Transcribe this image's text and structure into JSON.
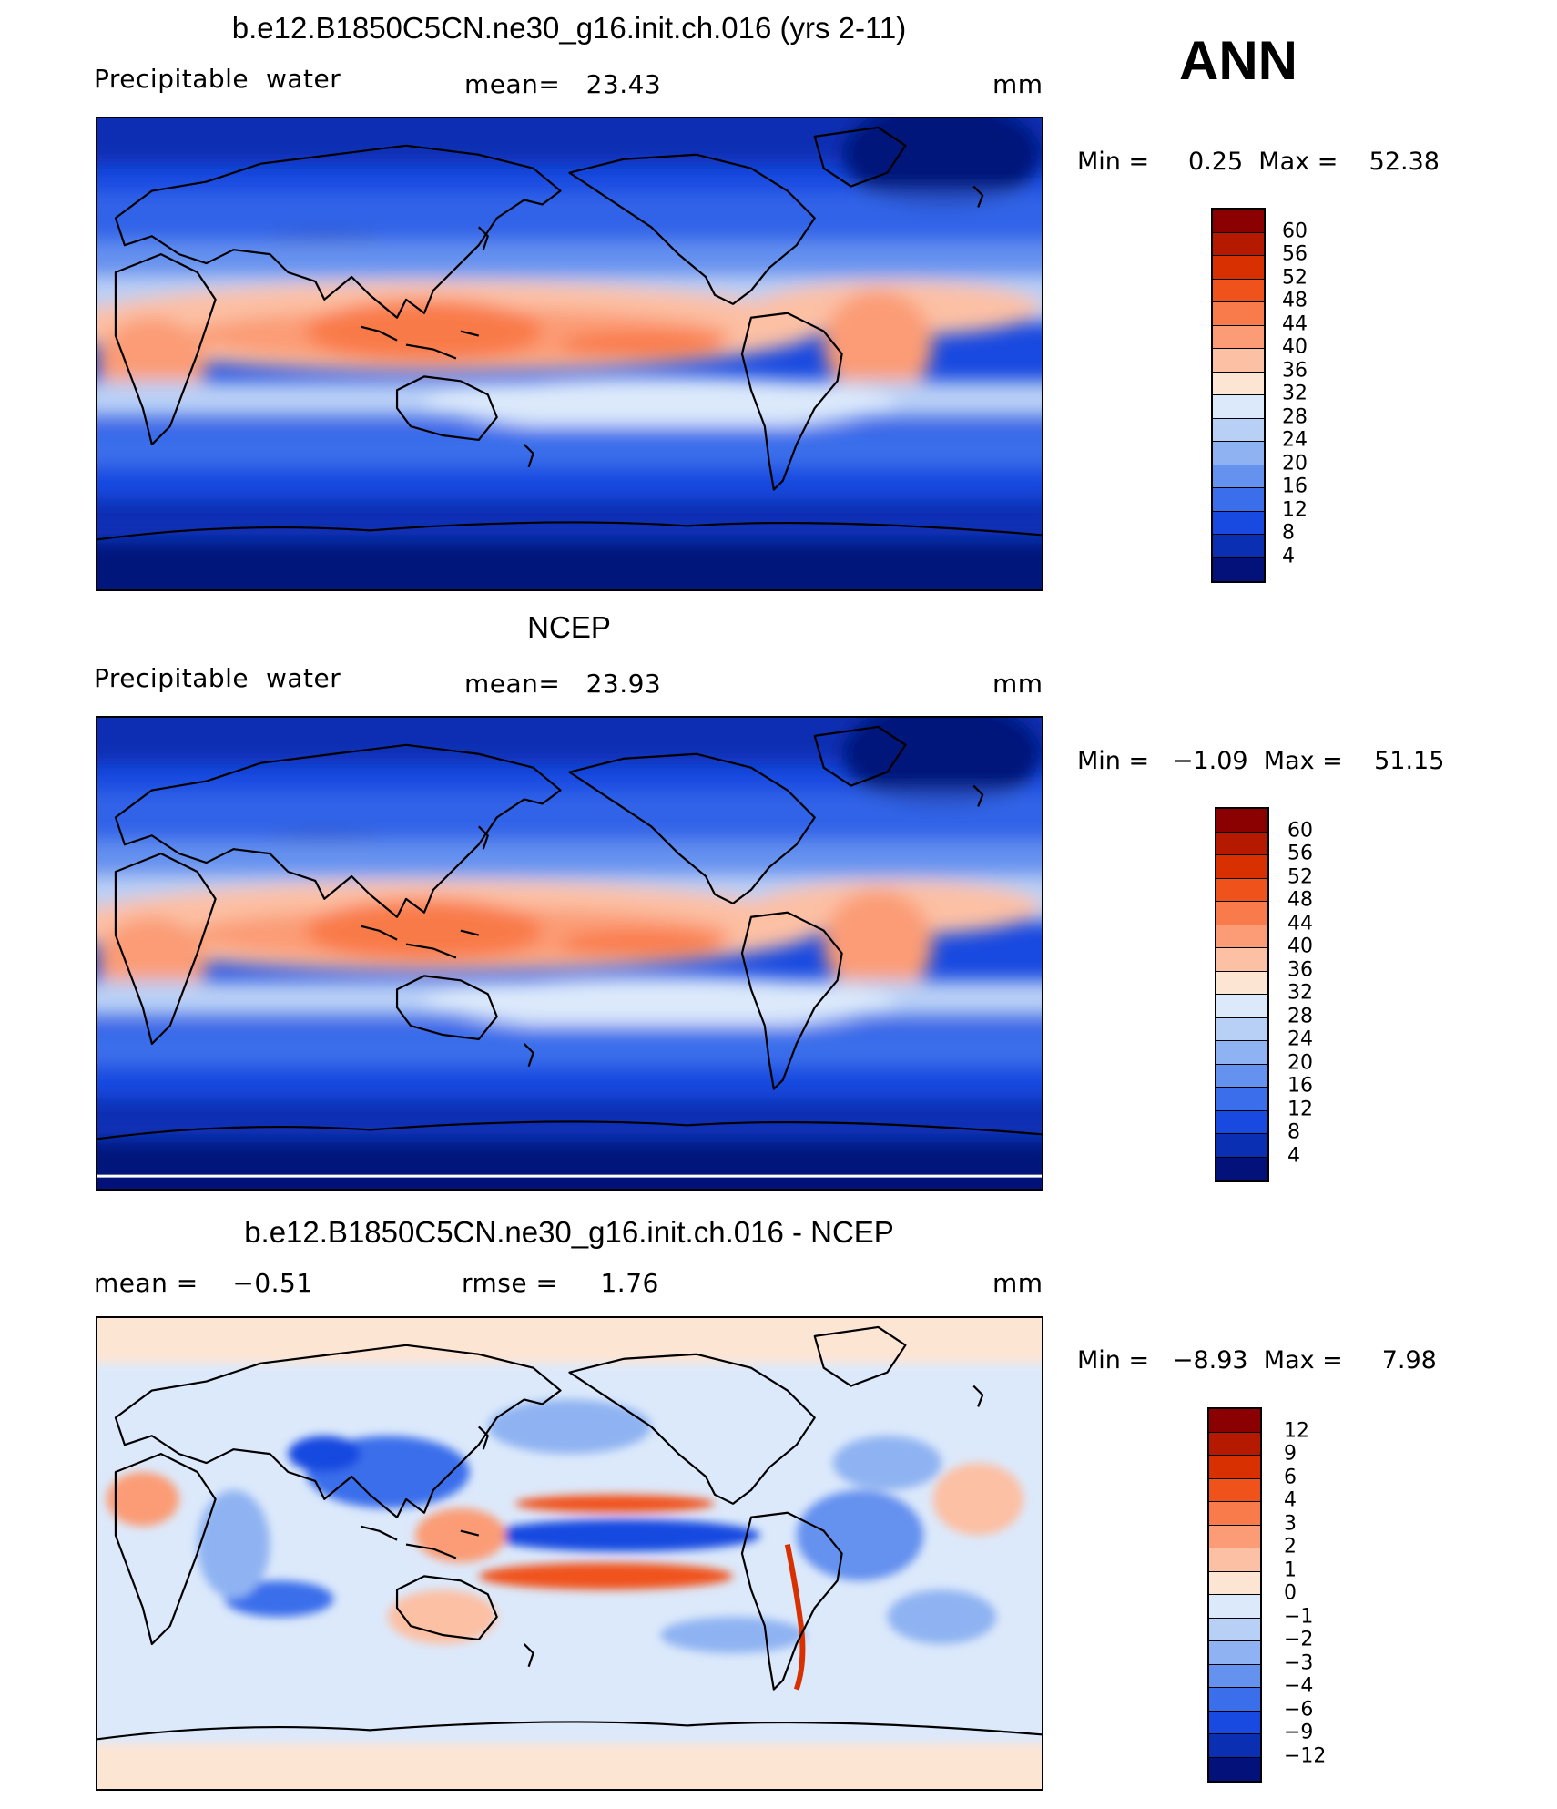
{
  "season": "ANN",
  "panels": [
    {
      "title": "b.e12.B1850C5CN.ne30_g16.init.ch.016 (yrs 2-11)",
      "left_label": "Precipitable  water",
      "center_label": "mean=   23.43",
      "unit": "mm",
      "min_max": "Min =     0.25  Max =    52.38",
      "map_kind": "field"
    },
    {
      "title": "NCEP",
      "left_label": "Precipitable  water",
      "center_label": "mean=   23.93",
      "unit": "mm",
      "min_max": "Min =   −1.09  Max =    51.15",
      "map_kind": "field"
    },
    {
      "title": "b.e12.B1850C5CN.ne30_g16.init.ch.016 - NCEP",
      "left_label": "mean =    −0.51",
      "center_label": "rmse =     1.76",
      "unit": "mm",
      "min_max": "Min =   −8.93  Max =     7.98",
      "map_kind": "difference"
    }
  ],
  "colorbars": {
    "field": {
      "labels": [
        "60",
        "56",
        "52",
        "48",
        "44",
        "40",
        "36",
        "32",
        "28",
        "24",
        "20",
        "16",
        "12",
        "8",
        "4"
      ],
      "colors": [
        "#8b0000",
        "#b51a00",
        "#d83000",
        "#f0521c",
        "#f97a4a",
        "#fb9c76",
        "#fcc0a4",
        "#fde5d4",
        "#dce9fb",
        "#b9d0f6",
        "#8fb3f2",
        "#6591ef",
        "#3a6eeb",
        "#1849e0",
        "#0a2fb2",
        "#03127a"
      ]
    },
    "difference": {
      "labels": [
        "12",
        "9",
        "6",
        "4",
        "3",
        "2",
        "1",
        "0",
        "−1",
        "−2",
        "−3",
        "−4",
        "−6",
        "−9",
        "−12"
      ],
      "colors": [
        "#8b0000",
        "#b51a00",
        "#d83000",
        "#f0521c",
        "#f97a4a",
        "#fb9c76",
        "#fcc0a4",
        "#fde5d4",
        "#dce9fb",
        "#b9d0f6",
        "#8fb3f2",
        "#6591ef",
        "#3a6eeb",
        "#1849e0",
        "#0a2fb2",
        "#03127a"
      ]
    }
  }
}
